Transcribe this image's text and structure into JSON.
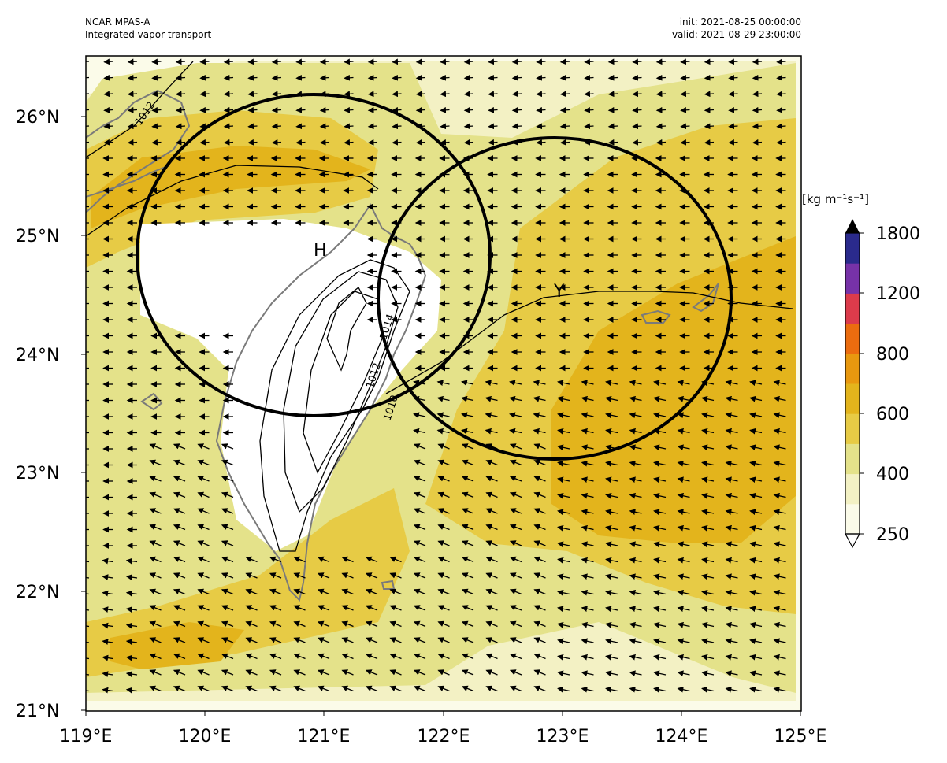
{
  "header": {
    "left_line1": "NCAR MPAS-A",
    "left_line2": "Integrated vapor transport",
    "right_line1": "init: 2021-08-25 00:00:00",
    "right_line2": "valid: 2021-08-29 23:00:00"
  },
  "map": {
    "lat_ticks": [
      "26°N",
      "25°N",
      "24°N",
      "23°N",
      "22°N",
      "21°N"
    ],
    "lon_ticks": [
      "119°E",
      "120°E",
      "121°E",
      "122°E",
      "123°E",
      "124°E",
      "125°E"
    ],
    "extent": {
      "lon": [
        119,
        125
      ],
      "lat": [
        21,
        26.5
      ]
    },
    "markers": [
      {
        "label": "H",
        "lon": 120.95,
        "lat": 24.85
      },
      {
        "label": "Y",
        "lon": 122.9,
        "lat": 24.55
      }
    ],
    "circles": [
      {
        "name": "circle-h",
        "center_lon": 120.92,
        "center_lat": 24.83,
        "radius_deg_lon": 1.48
      },
      {
        "name": "circle-y",
        "center_lon": 122.97,
        "center_lat": 24.47,
        "radius_deg_lon": 1.48
      }
    ],
    "contour_labels": [
      "1012",
      "1014",
      "1012",
      "1010"
    ]
  },
  "colorbar": {
    "units": "[kg m⁻¹s⁻¹]",
    "tick_labels": [
      "1800",
      "1200",
      "800",
      "600",
      "400",
      "250"
    ],
    "colors": [
      "#fbfbe9",
      "#f3f1c4",
      "#e4e28a",
      "#e7cb45",
      "#e3b41c",
      "#e8980f",
      "#eb6c0f",
      "#dc3b4b",
      "#7732a8",
      "#2a2a8c"
    ],
    "extend_max_color": "#000000",
    "extend_min_color": "#ffffff"
  },
  "colors": {
    "ivt_250": "#fbfbe9",
    "ivt_300": "#f3f1c4",
    "ivt_400": "#e4e28a",
    "ivt_500": "#e7cb45",
    "ivt_600": "#e3b41c",
    "coastline": "#7a7a7a"
  }
}
